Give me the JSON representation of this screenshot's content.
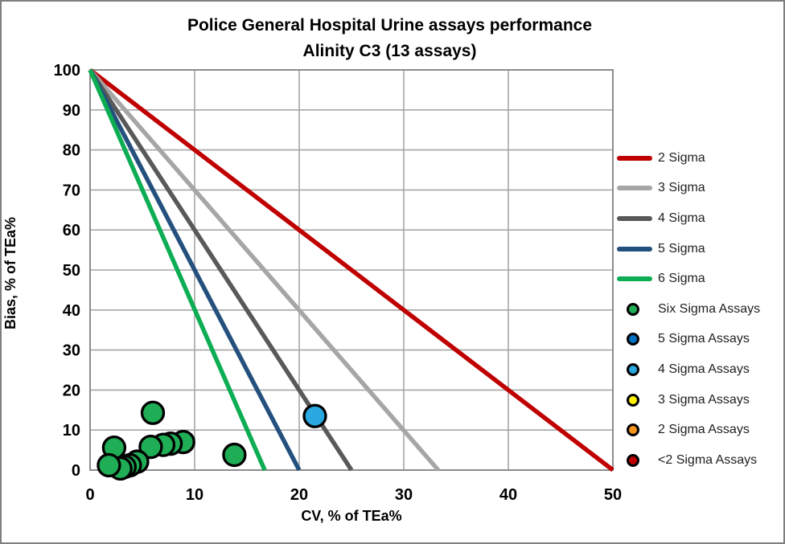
{
  "chart_data": {
    "type": "scatter",
    "title_line1": "Police General Hospital Urine assays performance",
    "title_line2": "Alinity C3 (13 assays)",
    "xlabel": "CV, % of TEa%",
    "ylabel": "Bias, % of TEa%",
    "xlim": [
      0,
      50
    ],
    "ylim": [
      0,
      100
    ],
    "x_ticks": [
      0,
      10,
      20,
      30,
      40,
      50
    ],
    "y_ticks": [
      0,
      10,
      20,
      30,
      40,
      50,
      60,
      70,
      80,
      90,
      100
    ],
    "grid": true,
    "grid_color": "#a6a6a6",
    "plot_border_color": "#8c8c8c",
    "tick_label_color": "#000000",
    "sigma_lines": [
      {
        "label": "2 Sigma",
        "color": "#c00000",
        "start": [
          0,
          100
        ],
        "x_intercept": 50
      },
      {
        "label": "3 Sigma",
        "color": "#a6a6a6",
        "start": [
          0,
          100
        ],
        "x_intercept": 33.3
      },
      {
        "label": "4 Sigma",
        "color": "#595959",
        "start": [
          0,
          100
        ],
        "x_intercept": 25
      },
      {
        "label": "5 Sigma",
        "color": "#24507e",
        "start": [
          0,
          100
        ],
        "x_intercept": 20
      },
      {
        "label": "6 Sigma",
        "color": "#0cad53",
        "start": [
          0,
          100
        ],
        "x_intercept": 16.7
      }
    ],
    "series": [
      {
        "name": "Six Sigma Assays",
        "color": "#1fae55",
        "points": [
          [
            1.8,
            1.2
          ],
          [
            2.3,
            5.6
          ],
          [
            2.9,
            0.4
          ],
          [
            3.3,
            0.8
          ],
          [
            3.8,
            1.2
          ],
          [
            4.5,
            2.1
          ],
          [
            5.8,
            5.8
          ],
          [
            6.0,
            14.3
          ],
          [
            7.0,
            6.3
          ],
          [
            7.7,
            6.6
          ],
          [
            8.9,
            7.0
          ],
          [
            13.8,
            3.8
          ]
        ]
      },
      {
        "name": "4 Sigma Assays",
        "color": "#29a9e0",
        "points": [
          [
            21.5,
            13.5
          ]
        ]
      }
    ],
    "legend_position": "right",
    "legend_markers": [
      {
        "label": "Six Sigma Assays",
        "color": "#1fae55"
      },
      {
        "label": "5 Sigma Assays",
        "color": "#0070c0"
      },
      {
        "label": "4 Sigma Assays",
        "color": "#29a9e0"
      },
      {
        "label": "3 Sigma Assays",
        "color": "#fff100"
      },
      {
        "label": "2 Sigma Assays",
        "color": "#f7941d"
      },
      {
        "label": "<2 Sigma Assays",
        "color": "#c00000"
      }
    ]
  }
}
